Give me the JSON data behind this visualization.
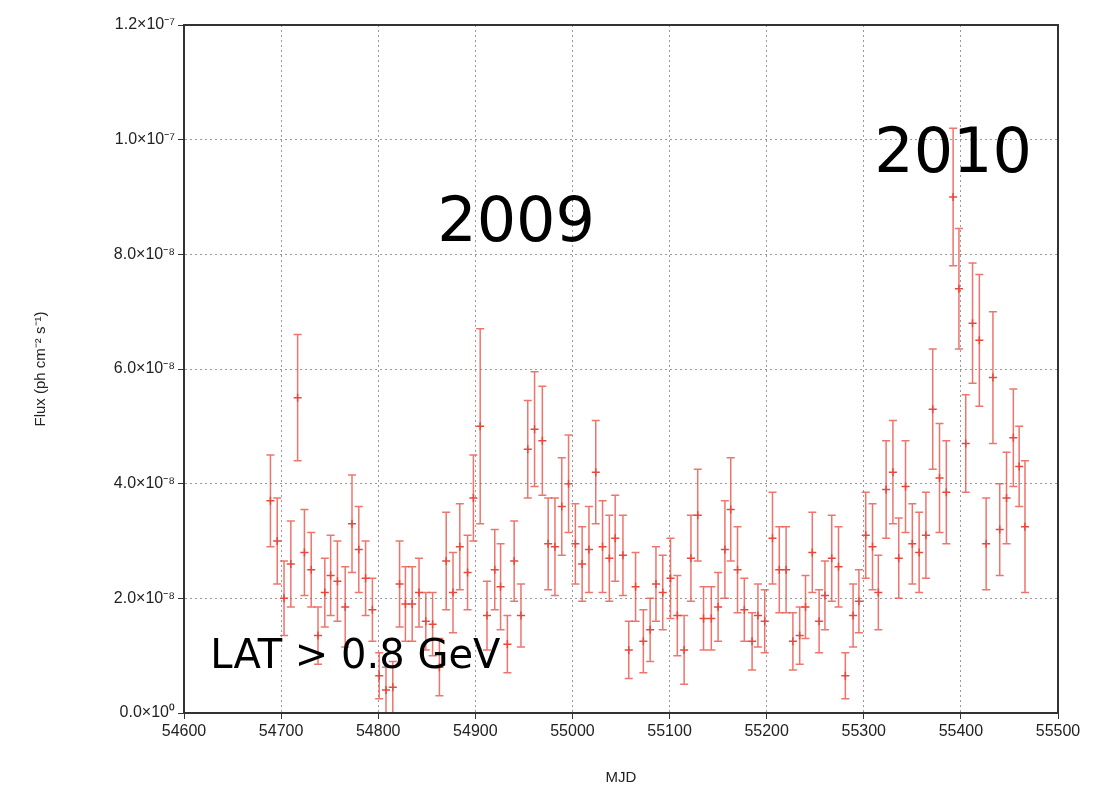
{
  "chart_data": {
    "type": "scatter",
    "xlabel": "MJD",
    "ylabel": "Flux (ph cm⁻² s⁻¹)",
    "annotations": [
      "2009",
      "2010",
      "LAT > 0.8 GeV"
    ],
    "xlim": [
      54600,
      55500
    ],
    "xticks": [
      54600,
      54700,
      54800,
      54900,
      55000,
      55100,
      55200,
      55300,
      55400,
      55500
    ],
    "ylim": [
      0,
      1.2e-07
    ],
    "yticks": [
      {
        "value": 0,
        "label": "0.0×10⁰"
      },
      {
        "value": 2e-08,
        "label": "2.0×10⁻⁸"
      },
      {
        "value": 4e-08,
        "label": "4.0×10⁻⁸"
      },
      {
        "value": 6e-08,
        "label": "6.0×10⁻⁸"
      },
      {
        "value": 8e-08,
        "label": "8.0×10⁻⁸"
      },
      {
        "value": 1e-07,
        "label": "1.0×10⁻⁷"
      },
      {
        "value": 1.2e-07,
        "label": "1.2×10⁻⁷"
      }
    ],
    "grid": true,
    "marker": "cross",
    "legend": false,
    "series": [
      {
        "color": "#e8473c",
        "x": [
          54689,
          54696,
          54703,
          54710,
          54717,
          54724,
          54731,
          54738,
          54745,
          54751,
          54758,
          54766,
          54773,
          54780,
          54787,
          54794,
          54801,
          54808,
          54815,
          54822,
          54828,
          54835,
          54842,
          54849,
          54856,
          54863,
          54870,
          54877,
          54884,
          54892,
          54898,
          54905,
          54912,
          54920,
          54926,
          54933,
          54940,
          54947,
          54954,
          54961,
          54969,
          54975,
          54982,
          54989,
          54996,
          55003,
          55010,
          55017,
          55024,
          55031,
          55038,
          55044,
          55052,
          55058,
          55065,
          55073,
          55080,
          55086,
          55093,
          55101,
          55108,
          55115,
          55122,
          55129,
          55135,
          55143,
          55150,
          55157,
          55163,
          55170,
          55177,
          55185,
          55191,
          55198,
          55206,
          55213,
          55220,
          55227,
          55234,
          55240,
          55247,
          55254,
          55260,
          55267,
          55274,
          55281,
          55289,
          55295,
          55302,
          55309,
          55315,
          55323,
          55330,
          55336,
          55343,
          55350,
          55357,
          55364,
          55371,
          55378,
          55385,
          55392,
          55398,
          55405,
          55412,
          55419,
          55426,
          55433,
          55440,
          55447,
          55454,
          55460,
          55466
        ],
        "values": [
          3.7e-08,
          3e-08,
          2e-08,
          2.6e-08,
          5.5e-08,
          2.8e-08,
          2.5e-08,
          1.35e-08,
          2.1e-08,
          2.4e-08,
          2.3e-08,
          1.85e-08,
          3.3e-08,
          2.85e-08,
          2.35e-08,
          1.8e-08,
          6.5e-09,
          4e-09,
          4.5e-09,
          2.25e-08,
          1.9e-08,
          1.9e-08,
          2.1e-08,
          1.6e-08,
          1.55e-08,
          8e-09,
          2.65e-08,
          2.1e-08,
          2.9e-08,
          2.45e-08,
          3.75e-08,
          5e-08,
          1.7e-08,
          2.5e-08,
          2.2e-08,
          1.2e-08,
          2.65e-08,
          1.7e-08,
          4.6e-08,
          4.95e-08,
          4.75e-08,
          2.95e-08,
          2.9e-08,
          3.6e-08,
          4e-08,
          2.95e-08,
          2.6e-08,
          2.85e-08,
          4.2e-08,
          2.9e-08,
          2.7e-08,
          3.05e-08,
          2.75e-08,
          1.1e-08,
          2.2e-08,
          1.25e-08,
          1.45e-08,
          2.25e-08,
          2.1e-08,
          2.35e-08,
          1.7e-08,
          1.1e-08,
          2.7e-08,
          3.45e-08,
          1.65e-08,
          1.65e-08,
          1.85e-08,
          2.85e-08,
          3.55e-08,
          2.5e-08,
          1.8e-08,
          1.25e-08,
          1.7e-08,
          1.6e-08,
          3.05e-08,
          2.5e-08,
          2.5e-08,
          1.25e-08,
          1.35e-08,
          1.85e-08,
          2.8e-08,
          1.6e-08,
          2.05e-08,
          2.7e-08,
          2.55e-08,
          6.5e-09,
          1.7e-08,
          1.95e-08,
          3.1e-08,
          2.9e-08,
          2.1e-08,
          3.9e-08,
          4.2e-08,
          2.7e-08,
          3.95e-08,
          2.95e-08,
          2.8e-08,
          3.1e-08,
          5.3e-08,
          4.1e-08,
          3.85e-08,
          9e-08,
          7.4e-08,
          4.7e-08,
          6.8e-08,
          6.5e-08,
          2.95e-08,
          5.85e-08,
          3.2e-08,
          3.75e-08,
          4.8e-08,
          4.3e-08,
          3.25e-08
        ],
        "errors": [
          8e-09,
          7.5e-09,
          6.5e-09,
          7.5e-09,
          1.1e-08,
          7.5e-09,
          6.5e-09,
          5e-09,
          6e-09,
          7e-09,
          7e-09,
          7e-09,
          8.5e-09,
          7.5e-09,
          6.5e-09,
          5.5e-09,
          4e-09,
          4e-09,
          4.5e-09,
          7.5e-09,
          6.5e-09,
          6.5e-09,
          6e-09,
          5e-09,
          5.5e-09,
          5e-09,
          8.5e-09,
          7e-09,
          7.5e-09,
          6.5e-09,
          7.5e-09,
          1.7e-08,
          6e-09,
          7e-09,
          7.5e-09,
          5e-09,
          7e-09,
          5.5e-09,
          8.5e-09,
          1e-08,
          9.5e-09,
          8e-09,
          8.5e-09,
          8.5e-09,
          8.5e-09,
          7e-09,
          6.5e-09,
          7.5e-09,
          9e-09,
          8e-09,
          7.5e-09,
          7.5e-09,
          7e-09,
          5e-09,
          6e-09,
          5.5e-09,
          5.5e-09,
          6.5e-09,
          6.5e-09,
          7e-09,
          7e-09,
          6e-09,
          7.5e-09,
          8e-09,
          5.5e-09,
          5.5e-09,
          6e-09,
          8.5e-09,
          9e-09,
          7.5e-09,
          5.5e-09,
          5e-09,
          5.5e-09,
          5.5e-09,
          8e-09,
          7.5e-09,
          7.5e-09,
          5e-09,
          5e-09,
          5.5e-09,
          7e-09,
          5.5e-09,
          6e-09,
          7.5e-09,
          7e-09,
          4e-09,
          5.5e-09,
          5.5e-09,
          7.5e-09,
          7.5e-09,
          6.5e-09,
          8.5e-09,
          9e-09,
          7e-09,
          8e-09,
          7e-09,
          7e-09,
          7.5e-09,
          1.05e-08,
          9.5e-09,
          9e-09,
          1.2e-08,
          1.05e-08,
          8.5e-09,
          1.05e-08,
          1.15e-08,
          8e-09,
          1.15e-08,
          8e-09,
          8e-09,
          8.5e-09,
          7e-09,
          1.15e-08
        ]
      }
    ]
  }
}
